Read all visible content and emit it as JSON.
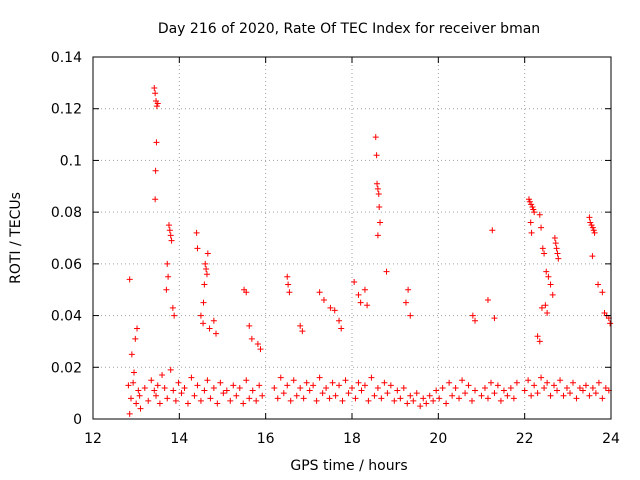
{
  "chart_data": {
    "type": "scatter",
    "title": "Day 216 of 2020, Rate Of TEC Index for receiver bman",
    "xlabel": "GPS time / hours",
    "ylabel": "ROTI / TECUs",
    "xlim": [
      12,
      24
    ],
    "ylim": [
      0,
      0.14
    ],
    "x_ticks": [
      12,
      14,
      16,
      18,
      20,
      22,
      24
    ],
    "x_tick_labels": [
      "12",
      "14",
      "16",
      "18",
      "20",
      "22",
      "24"
    ],
    "y_ticks": [
      0,
      0.02,
      0.04,
      0.06,
      0.08,
      0.1,
      0.12,
      0.14
    ],
    "y_tick_labels": [
      "0",
      "0.02",
      "0.04",
      "0.06",
      "0.08",
      "0.1",
      "0.12",
      "0.14"
    ],
    "grid": true,
    "marker": "plus",
    "series": [
      {
        "name": "ROTI",
        "color": "#ff0000",
        "x": [
          12.82,
          12.88,
          12.95,
          13.0,
          13.05,
          13.1,
          12.9,
          12.98,
          13.02,
          12.85,
          12.93,
          13.08,
          13.2,
          13.28,
          13.35,
          13.42,
          13.46,
          13.5,
          13.55,
          13.6,
          13.66,
          13.72,
          13.8,
          13.86,
          13.92,
          13.98,
          14.05,
          14.12,
          14.2,
          14.28,
          14.35,
          14.42,
          14.5,
          14.58,
          14.65,
          14.72,
          14.8,
          14.88,
          14.95,
          15.02,
          15.1,
          15.18,
          15.25,
          15.32,
          15.4,
          15.48,
          15.55,
          15.62,
          15.7,
          15.78,
          15.85,
          15.92,
          16.2,
          16.28,
          16.35,
          16.42,
          16.5,
          16.58,
          16.65,
          16.72,
          16.8,
          16.88,
          16.95,
          17.02,
          17.1,
          17.18,
          17.25,
          17.32,
          17.4,
          17.48,
          17.55,
          17.62,
          17.7,
          17.78,
          17.85,
          17.92,
          18.0,
          18.08,
          18.15,
          18.22,
          18.3,
          18.38,
          18.45,
          18.52,
          18.6,
          18.68,
          18.75,
          18.82,
          18.9,
          18.98,
          19.05,
          19.12,
          19.2,
          19.28,
          19.35,
          19.42,
          19.5,
          19.58,
          19.65,
          19.72,
          19.8,
          19.88,
          19.95,
          20.02,
          20.1,
          20.18,
          20.25,
          20.32,
          20.4,
          20.48,
          20.55,
          20.62,
          20.7,
          20.78,
          20.85,
          21.0,
          21.08,
          21.15,
          21.22,
          21.3,
          21.38,
          21.45,
          21.52,
          21.6,
          21.68,
          21.75,
          21.82,
          22.0,
          22.08,
          22.15,
          22.22,
          22.3,
          22.38,
          22.45,
          22.52,
          22.6,
          22.68,
          22.75,
          22.82,
          22.9,
          22.98,
          23.05,
          23.12,
          23.2,
          23.28,
          23.35,
          23.42,
          23.5,
          23.58,
          23.65,
          23.72,
          23.8,
          23.88,
          23.95,
          12.85,
          13.42,
          13.44,
          13.46,
          13.48,
          13.5,
          13.47,
          13.45,
          13.44,
          13.76,
          13.78,
          13.8,
          13.82,
          13.72,
          13.74,
          13.7,
          13.85,
          13.88,
          14.4,
          14.42,
          14.6,
          14.62,
          14.64,
          14.58,
          14.56,
          14.66,
          14.5,
          14.55,
          14.7,
          14.8,
          14.85,
          15.5,
          15.55,
          15.62,
          15.68,
          15.82,
          15.88,
          16.5,
          16.52,
          16.55,
          16.8,
          16.85,
          17.25,
          17.35,
          17.5,
          17.6,
          17.7,
          17.75,
          18.05,
          18.15,
          18.2,
          18.3,
          18.35,
          18.55,
          18.57,
          18.58,
          18.6,
          18.62,
          18.63,
          18.65,
          18.6,
          18.8,
          19.3,
          19.35,
          19.25,
          20.8,
          20.85,
          21.15,
          21.25,
          21.3,
          22.1,
          22.12,
          22.15,
          22.18,
          22.2,
          22.22,
          22.14,
          22.16,
          22.35,
          22.38,
          22.42,
          22.45,
          22.5,
          22.55,
          22.6,
          22.65,
          22.7,
          22.72,
          22.74,
          22.76,
          22.78,
          22.48,
          22.52,
          22.4,
          22.3,
          22.35,
          23.5,
          23.52,
          23.55,
          23.58,
          23.6,
          23.62,
          23.57,
          23.7,
          23.8,
          23.85,
          23.9,
          23.95,
          23.98
        ],
        "y": [
          0.013,
          0.008,
          0.018,
          0.006,
          0.011,
          0.004,
          0.025,
          0.031,
          0.035,
          0.002,
          0.014,
          0.009,
          0.012,
          0.007,
          0.015,
          0.011,
          0.009,
          0.013,
          0.006,
          0.017,
          0.012,
          0.008,
          0.019,
          0.011,
          0.007,
          0.014,
          0.01,
          0.012,
          0.006,
          0.016,
          0.009,
          0.013,
          0.007,
          0.011,
          0.015,
          0.008,
          0.012,
          0.006,
          0.014,
          0.01,
          0.011,
          0.007,
          0.013,
          0.009,
          0.012,
          0.006,
          0.015,
          0.008,
          0.011,
          0.007,
          0.013,
          0.009,
          0.012,
          0.008,
          0.016,
          0.01,
          0.013,
          0.007,
          0.015,
          0.009,
          0.012,
          0.008,
          0.014,
          0.011,
          0.013,
          0.007,
          0.016,
          0.01,
          0.012,
          0.008,
          0.014,
          0.009,
          0.013,
          0.007,
          0.015,
          0.01,
          0.012,
          0.008,
          0.014,
          0.011,
          0.013,
          0.007,
          0.016,
          0.009,
          0.012,
          0.008,
          0.014,
          0.01,
          0.013,
          0.007,
          0.011,
          0.008,
          0.012,
          0.006,
          0.009,
          0.007,
          0.01,
          0.005,
          0.008,
          0.006,
          0.009,
          0.007,
          0.011,
          0.008,
          0.012,
          0.006,
          0.014,
          0.009,
          0.012,
          0.008,
          0.015,
          0.01,
          0.013,
          0.007,
          0.011,
          0.009,
          0.012,
          0.008,
          0.014,
          0.01,
          0.013,
          0.007,
          0.011,
          0.009,
          0.012,
          0.008,
          0.014,
          0.011,
          0.015,
          0.009,
          0.013,
          0.01,
          0.016,
          0.012,
          0.014,
          0.009,
          0.013,
          0.011,
          0.015,
          0.009,
          0.012,
          0.01,
          0.014,
          0.008,
          0.012,
          0.011,
          0.013,
          0.009,
          0.012,
          0.01,
          0.014,
          0.008,
          0.012,
          0.011,
          0.054,
          0.128,
          0.126,
          0.123,
          0.121,
          0.122,
          0.107,
          0.096,
          0.085,
          0.075,
          0.073,
          0.071,
          0.069,
          0.06,
          0.055,
          0.05,
          0.043,
          0.04,
          0.072,
          0.066,
          0.06,
          0.058,
          0.056,
          0.052,
          0.045,
          0.064,
          0.04,
          0.037,
          0.035,
          0.038,
          0.033,
          0.05,
          0.049,
          0.036,
          0.031,
          0.029,
          0.027,
          0.055,
          0.052,
          0.049,
          0.036,
          0.034,
          0.049,
          0.046,
          0.043,
          0.042,
          0.038,
          0.035,
          0.053,
          0.048,
          0.045,
          0.05,
          0.044,
          0.109,
          0.102,
          0.091,
          0.089,
          0.087,
          0.082,
          0.076,
          0.071,
          0.057,
          0.05,
          0.04,
          0.045,
          0.04,
          0.038,
          0.046,
          0.073,
          0.039,
          0.085,
          0.084,
          0.083,
          0.082,
          0.081,
          0.08,
          0.076,
          0.072,
          0.079,
          0.074,
          0.066,
          0.064,
          0.057,
          0.055,
          0.052,
          0.048,
          0.07,
          0.068,
          0.066,
          0.064,
          0.062,
          0.044,
          0.041,
          0.043,
          0.032,
          0.03,
          0.078,
          0.076,
          0.075,
          0.074,
          0.073,
          0.072,
          0.063,
          0.052,
          0.049,
          0.041,
          0.04,
          0.039,
          0.037
        ]
      }
    ]
  }
}
